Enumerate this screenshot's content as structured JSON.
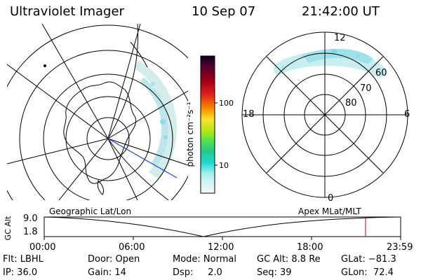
{
  "header": {
    "instrument": "Ultraviolet Imager",
    "date": "10 Sep 07",
    "time": "21:42:00 UT"
  },
  "colorbar": {
    "label": "photon cm⁻²s⁻¹",
    "ticks": [
      "100",
      "10"
    ],
    "colors": [
      "#0c0018",
      "#5a0030",
      "#a00010",
      "#e02020",
      "#f06000",
      "#f8a000",
      "#f8e030",
      "#b8e810",
      "#50e050",
      "#20c890",
      "#20d8d8",
      "#a8f0f0",
      "#d8f4f4",
      "#f4f8f8"
    ]
  },
  "polar_plot": {
    "labels": {
      "top": "12",
      "bottom": "0",
      "left": "18",
      "right": "6",
      "lat60": "60",
      "lat70": "70",
      "lat80": "80"
    }
  },
  "timeline": {
    "left_title": "Geographic Lat/Lon",
    "right_title": "Apex MLat/MLT",
    "axis_label": "GC Alt",
    "y_high": "9.0",
    "y_low": "1.8",
    "ticks": [
      "00:00",
      "06:00",
      "12:00",
      "18:00",
      "23:59"
    ],
    "marker_color": "#cc0000"
  },
  "info": {
    "row1": {
      "flt": "Flt: LBHL",
      "door": "Door: Open",
      "mode": "Mode: Normal",
      "gcalt": "GC Alt: 8.8 Re",
      "glat": "GLat: −81.3"
    },
    "row2": {
      "ip": "IP: 36.0",
      "gain": "Gain: 14",
      "dsp": "Dsp:     2.0",
      "seq": "Seq: 39",
      "glon": "GLon:  72.4"
    }
  }
}
